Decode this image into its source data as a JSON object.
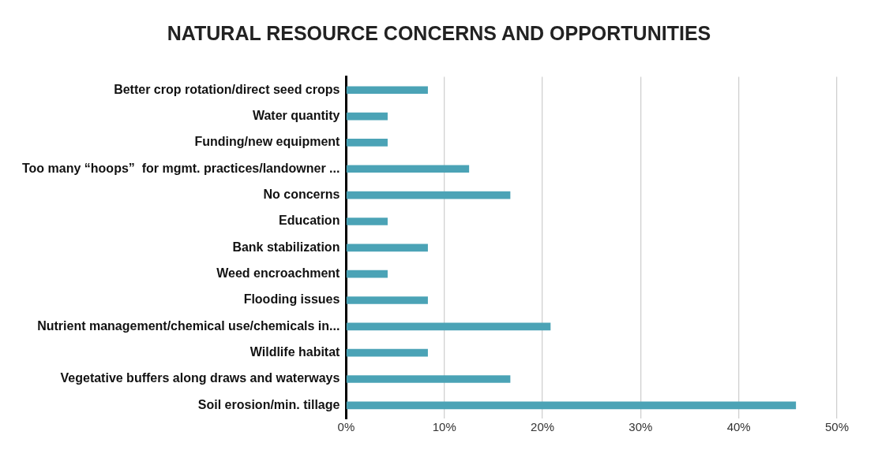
{
  "chart_data": {
    "type": "bar",
    "orientation": "horizontal",
    "title": "NATURAL RESOURCE CONCERNS AND OPPORTUNITIES",
    "categories": [
      "Better crop rotation/direct seed crops",
      "Water quantity",
      "Funding/new equipment",
      "Too many “hoops”  for mgmt. practices/landowner ...",
      "No concerns",
      "Education",
      "Bank stabilization",
      "Weed encroachment",
      "Flooding issues",
      "Nutrient management/chemical use/chemicals in...",
      "Wildlife habitat",
      "Vegetative buffers along draws and waterways",
      "Soil erosion/min. tillage"
    ],
    "values": [
      8.3,
      4.2,
      4.2,
      12.5,
      16.7,
      4.2,
      8.3,
      4.2,
      8.3,
      20.8,
      8.3,
      16.7,
      45.8
    ],
    "color": "#4ba3b6",
    "xlim": [
      0,
      50
    ],
    "xticks": [
      {
        "value": 0,
        "label": "0%"
      },
      {
        "value": 10,
        "label": "10%"
      },
      {
        "value": 20,
        "label": "20%"
      },
      {
        "value": 30,
        "label": "30%"
      },
      {
        "value": 40,
        "label": "40%"
      },
      {
        "value": 50,
        "label": "50%"
      }
    ],
    "grid": "x"
  }
}
